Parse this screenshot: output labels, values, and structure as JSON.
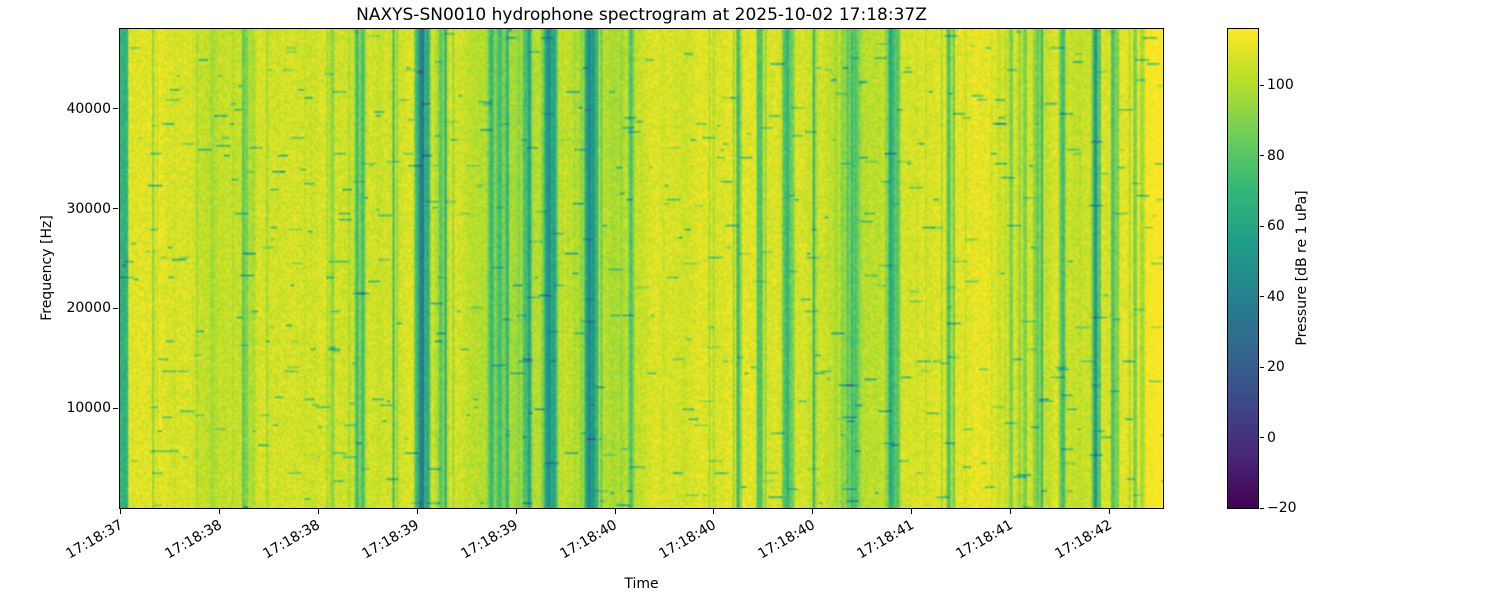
{
  "chart_data": {
    "type": "heatmap",
    "title": "NAXYS-SN0010 hydrophone spectrogram at 2025-10-02 17:18:37Z",
    "xlabel": "Time",
    "ylabel": "Frequency [Hz]",
    "x_tick_labels": [
      "17:18:37",
      "17:18:38",
      "17:18:38",
      "17:18:39",
      "17:18:39",
      "17:18:40",
      "17:18:40",
      "17:18:40",
      "17:18:41",
      "17:18:41",
      "17:18:42"
    ],
    "x_tick_rotation_deg": 30,
    "y_ticks": [
      10000,
      20000,
      30000,
      40000
    ],
    "ylim": [
      0,
      48000
    ],
    "grid": false,
    "legend": "none",
    "colormap": "viridis",
    "colormap_stops": [
      "#440154",
      "#482878",
      "#3e4a89",
      "#31688e",
      "#26828e",
      "#1f9e89",
      "#35b779",
      "#6ece58",
      "#b5de2b",
      "#fde725"
    ],
    "colorbar": {
      "label": "Pressure [dB re 1 uPa]",
      "ticks": [
        100,
        80,
        60,
        40,
        20,
        0,
        -20
      ],
      "vmin": -20,
      "vmax": 116,
      "position": "right"
    },
    "value_summary": {
      "background_dB_range": [
        90,
        115
      ],
      "dark_band_dB_range": [
        30,
        75
      ],
      "pattern": "irregular dark teal vertical bands of varying width over a bright yellow-green noise field, fine speckle texture throughout"
    }
  },
  "style": {
    "background": "#ffffff",
    "text_color": "#000000",
    "frame_color": "#000000"
  }
}
